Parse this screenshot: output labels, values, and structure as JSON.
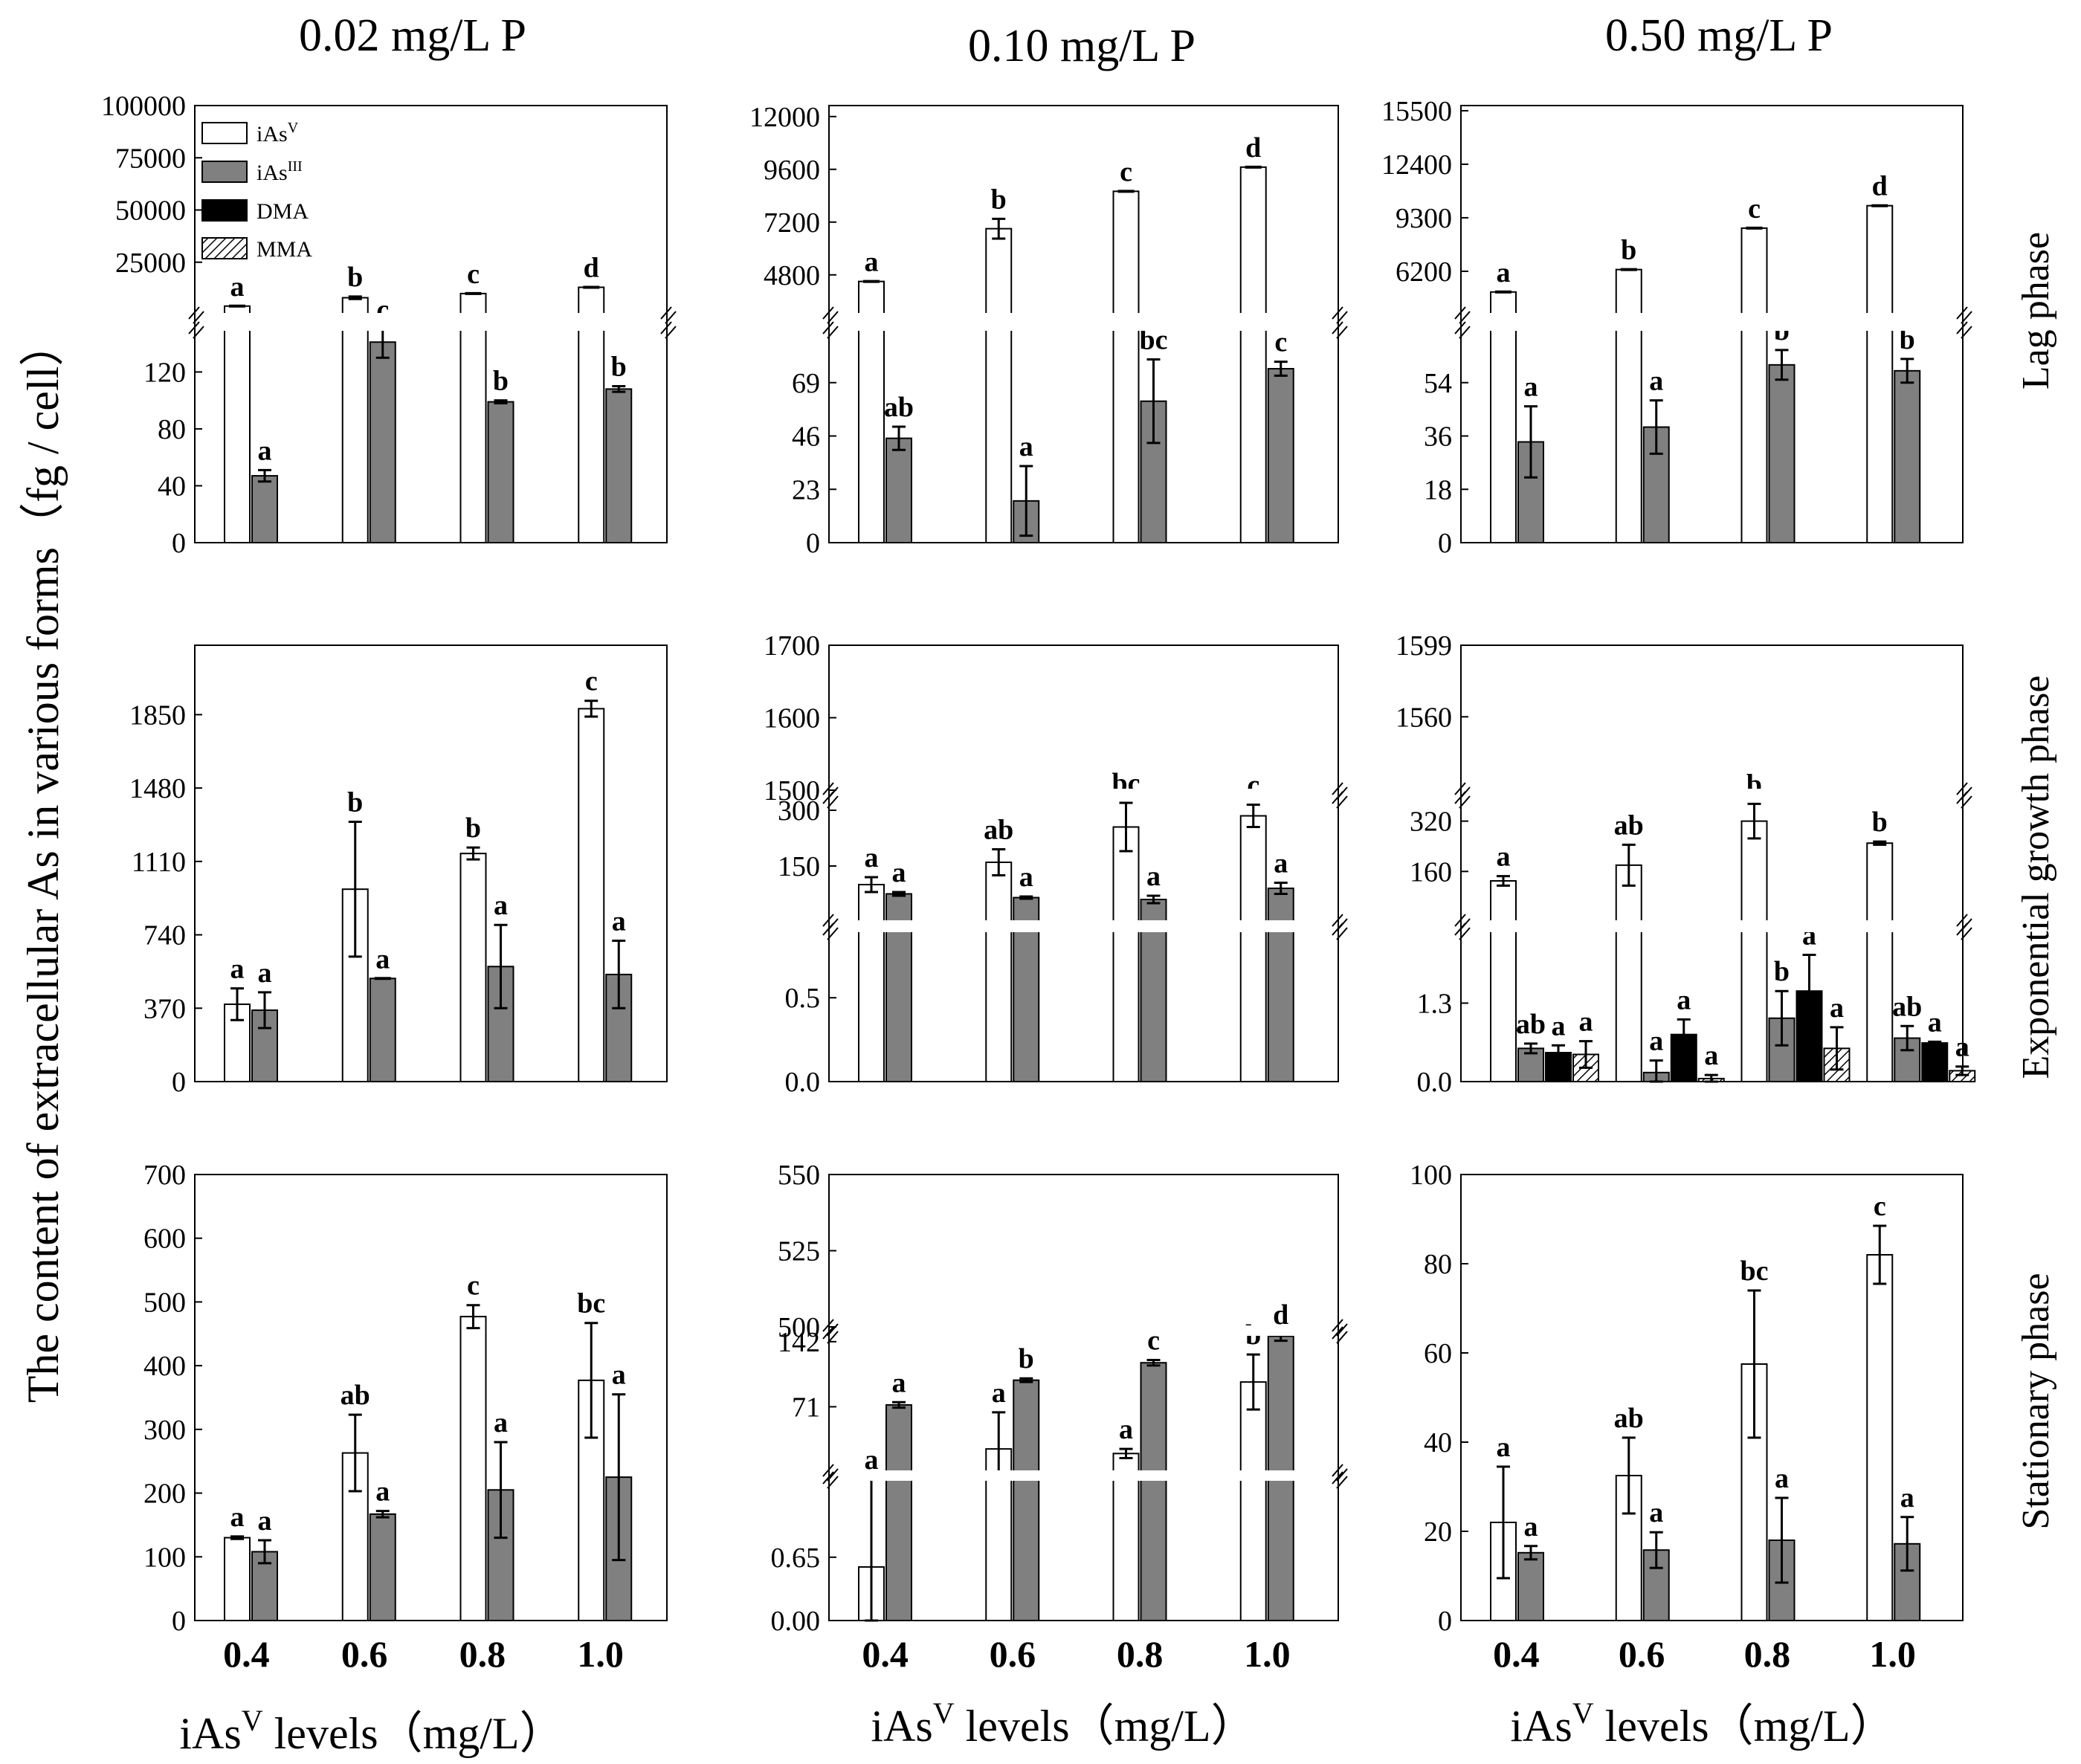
{
  "figure": {
    "column_titles": [
      "0.02  mg/L  P",
      "0.10  mg/L  P",
      "0.50  mg/L  P"
    ],
    "row_titles": [
      "Lag phase",
      "Exponential growth phase",
      "Stationary phase"
    ],
    "y_label": "The content of extracellular As in various forms（fg / cell）",
    "x_label_main": "iAs",
    "x_label_sup": "V",
    "x_label_rest": " levels（mg/L）",
    "legend": [
      {
        "name": "iAs",
        "sup": "V",
        "fill": "#ffffff"
      },
      {
        "name": "iAs",
        "sup": "III",
        "fill": "#808080"
      },
      {
        "name": "DMA",
        "sup": "",
        "fill": "#000000"
      },
      {
        "name": "MMA",
        "sup": "",
        "fill": "hatch"
      }
    ]
  },
  "colors": {
    "iAsV": "#ffffff",
    "iAsIII": "#808080",
    "DMA": "#000000",
    "MMA": "hatch",
    "stroke": "#000000"
  },
  "chart_data": [
    {
      "type": "bar",
      "phase": "Lag phase",
      "p_level": "0.02  mg/L  P",
      "categories": [
        "0.4",
        "0.6",
        "0.8",
        "1.0"
      ],
      "axis_break": {
        "lower": [
          0,
          150
        ],
        "upper": [
          0,
          100000
        ]
      },
      "yticks_lower": [
        "0",
        "40",
        "80",
        "120"
      ],
      "yticks_upper": [
        "25000",
        "50000",
        "75000",
        "100000"
      ],
      "series": [
        {
          "name": "iAsV",
          "values": [
            4000,
            8000,
            10000,
            13000
          ],
          "errors": [
            0,
            600,
            0,
            0
          ],
          "labels": [
            "a",
            "b",
            "c",
            "d"
          ]
        },
        {
          "name": "iAsIII",
          "values": [
            47,
            141,
            99,
            108
          ],
          "errors": [
            4,
            11,
            1,
            2
          ],
          "labels": [
            "a",
            "c",
            "b",
            "b"
          ]
        }
      ]
    },
    {
      "type": "bar",
      "phase": "Lag phase",
      "p_level": "0.10  mg/L  P",
      "categories": [
        "0.4",
        "0.6",
        "0.8",
        "1.0"
      ],
      "axis_break": {
        "lower": [
          0,
          92
        ],
        "upper": [
          3000,
          12500
        ]
      },
      "yticks_lower": [
        "0",
        "23",
        "46",
        "69"
      ],
      "yticks_upper": [
        "4800",
        "7200",
        "9600",
        "12000"
      ],
      "series": [
        {
          "name": "iAsV",
          "values": [
            4500,
            6900,
            8600,
            9700
          ],
          "errors": [
            0,
            450,
            0,
            0
          ],
          "labels": [
            "a",
            "b",
            "c",
            "d"
          ]
        },
        {
          "name": "iAsIII",
          "values": [
            45,
            18,
            61,
            75
          ],
          "errors": [
            5,
            15,
            18,
            3
          ],
          "labels": [
            "ab",
            "a",
            "bc",
            "c"
          ]
        }
      ]
    },
    {
      "type": "bar",
      "phase": "Lag phase",
      "p_level": "0.50  mg/L  P",
      "categories": [
        "0.4",
        "0.6",
        "0.8",
        "1.0"
      ],
      "axis_break": {
        "lower": [
          0,
          72
        ],
        "upper": [
          3700,
          15800
        ]
      },
      "yticks_lower": [
        "0",
        "18",
        "36",
        "54"
      ],
      "yticks_upper": [
        "6200",
        "9300",
        "12400",
        "15500"
      ],
      "series": [
        {
          "name": "iAsV",
          "values": [
            5000,
            6300,
            8700,
            10000
          ],
          "errors": [
            0,
            0,
            0,
            0
          ],
          "labels": [
            "a",
            "b",
            "c",
            "d"
          ]
        },
        {
          "name": "iAsIII",
          "values": [
            34,
            39,
            60,
            58
          ],
          "errors": [
            12,
            9,
            5,
            4
          ],
          "labels": [
            "a",
            "a",
            "b",
            "b"
          ]
        }
      ]
    },
    {
      "type": "bar",
      "phase": "Exponential growth phase",
      "p_level": "0.02  mg/L  P",
      "categories": [
        "0.4",
        "0.6",
        "0.8",
        "1.0"
      ],
      "y_range": [
        0,
        2200
      ],
      "yticks": [
        "0",
        "370",
        "740",
        "1110",
        "1480",
        "1850"
      ],
      "series": [
        {
          "name": "iAsV",
          "values": [
            390,
            970,
            1150,
            1880
          ],
          "errors": [
            80,
            340,
            30,
            40
          ],
          "labels": [
            "a",
            "b",
            "b",
            "c"
          ]
        },
        {
          "name": "iAsIII",
          "values": [
            360,
            520,
            580,
            540
          ],
          "errors": [
            90,
            0,
            210,
            170
          ],
          "labels": [
            "a",
            "a",
            "a",
            "a"
          ]
        }
      ]
    },
    {
      "type": "bar",
      "phase": "Exponential growth phase",
      "p_level": "0.10  mg/L  P",
      "categories": [
        "0.4",
        "0.6",
        "0.8",
        "1.0"
      ],
      "segments": [
        [
          0,
          0.9
        ],
        [
          0,
          330
        ],
        [
          1500,
          1700
        ]
      ],
      "yticks_seg0": [
        "0.0",
        "0.5"
      ],
      "yticks_seg1": [
        "150",
        "300"
      ],
      "yticks_seg2": [
        "1500",
        "1600",
        "1700"
      ],
      "series": [
        {
          "name": "iAsV",
          "values": [
            100,
            160,
            255,
            285
          ],
          "errors": [
            20,
            35,
            65,
            30
          ],
          "labels": [
            "a",
            "ab",
            "bc",
            "c"
          ]
        },
        {
          "name": "iAsIII",
          "values": [
            75,
            65,
            60,
            90
          ],
          "errors": [
            5,
            3,
            10,
            15
          ],
          "labels": [
            "a",
            "a",
            "a",
            "a"
          ]
        }
      ]
    },
    {
      "type": "bar",
      "phase": "Exponential growth phase",
      "p_level": "0.50  mg/L  P",
      "categories": [
        "0.4",
        "0.6",
        "0.8",
        "1.0"
      ],
      "segments": [
        [
          0,
          2.5
        ],
        [
          0,
          390
        ],
        [
          1520,
          1599
        ]
      ],
      "yticks_seg0": [
        "0.0",
        "1.3"
      ],
      "yticks_seg1": [
        "160",
        "320"
      ],
      "yticks_seg2": [
        "1560",
        "1599"
      ],
      "series": [
        {
          "name": "iAsV",
          "values": [
            130,
            180,
            320,
            250
          ],
          "errors": [
            15,
            65,
            55,
            5
          ],
          "labels": [
            "a",
            "ab",
            "b",
            "b"
          ]
        },
        {
          "name": "iAsIII",
          "values": [
            0.55,
            0.15,
            1.05,
            0.72
          ],
          "errors": [
            0.08,
            0.2,
            0.45,
            0.2
          ],
          "labels": [
            "ab",
            "a",
            "b",
            "ab"
          ]
        },
        {
          "name": "DMA",
          "values": [
            0.48,
            0.78,
            1.5,
            0.64
          ],
          "errors": [
            0.12,
            0.25,
            0.6,
            0.02
          ],
          "labels": [
            "a",
            "a",
            "a",
            "a"
          ]
        },
        {
          "name": "MMA",
          "values": [
            0.45,
            0.05,
            0.55,
            0.18
          ],
          "errors": [
            0.22,
            0.06,
            0.35,
            0.07
          ],
          "labels": [
            "a",
            "a",
            "a",
            "a"
          ]
        }
      ]
    },
    {
      "type": "bar",
      "phase": "Stationary phase",
      "p_level": "0.02  mg/L  P",
      "categories": [
        "0.4",
        "0.6",
        "0.8",
        "1.0"
      ],
      "y_range": [
        0,
        700
      ],
      "yticks": [
        "0",
        "100",
        "200",
        "300",
        "400",
        "500",
        "600",
        "700"
      ],
      "series": [
        {
          "name": "iAsV",
          "values": [
            130,
            263,
            477,
            377
          ],
          "errors": [
            2,
            60,
            18,
            90
          ],
          "labels": [
            "a",
            "ab",
            "c",
            "bc"
          ]
        },
        {
          "name": "iAsIII",
          "values": [
            108,
            167,
            205,
            225
          ],
          "errors": [
            18,
            5,
            75,
            130
          ],
          "labels": [
            "a",
            "a",
            "a",
            "a"
          ]
        }
      ]
    },
    {
      "type": "bar",
      "phase": "Stationary phase",
      "p_level": "0.10  mg/L  P",
      "categories": [
        "0.4",
        "0.6",
        "0.8",
        "1.0"
      ],
      "segments": [
        [
          0,
          1.45
        ],
        [
          0,
          150
        ],
        [
          500,
          550
        ]
      ],
      "yticks_seg0": [
        "0.00",
        "0.65"
      ],
      "yticks_seg1": [
        "71",
        "142"
      ],
      "yticks_seg2": [
        "500",
        "525",
        "550"
      ],
      "series": [
        {
          "name": "iAsV",
          "values": [
            0.55,
            25,
            20,
            98
          ],
          "errors": [
            1.3,
            40,
            5,
            30
          ],
          "labels": [
            "a",
            "a",
            "a",
            "b"
          ]
        },
        {
          "name": "iAsIII",
          "values": [
            73,
            100,
            119,
            148
          ],
          "errors": [
            3,
            2,
            3,
            5
          ],
          "labels": [
            "a",
            "b",
            "c",
            "d"
          ]
        }
      ]
    },
    {
      "type": "bar",
      "phase": "Stationary phase",
      "p_level": "0.50  mg/L  P",
      "categories": [
        "0.4",
        "0.6",
        "0.8",
        "1.0"
      ],
      "y_range": [
        0,
        100
      ],
      "yticks": [
        "0",
        "20",
        "40",
        "60",
        "80",
        "100"
      ],
      "series": [
        {
          "name": "iAsV",
          "values": [
            22,
            32.5,
            57.5,
            82
          ],
          "errors": [
            12.5,
            8.5,
            16.5,
            6.5
          ],
          "labels": [
            "a",
            "ab",
            "bc",
            "c"
          ]
        },
        {
          "name": "iAsIII",
          "values": [
            15.2,
            15.8,
            18,
            17.2
          ],
          "errors": [
            1.5,
            4,
            9.5,
            6
          ],
          "labels": [
            "a",
            "a",
            "a",
            "a"
          ]
        }
      ]
    }
  ]
}
